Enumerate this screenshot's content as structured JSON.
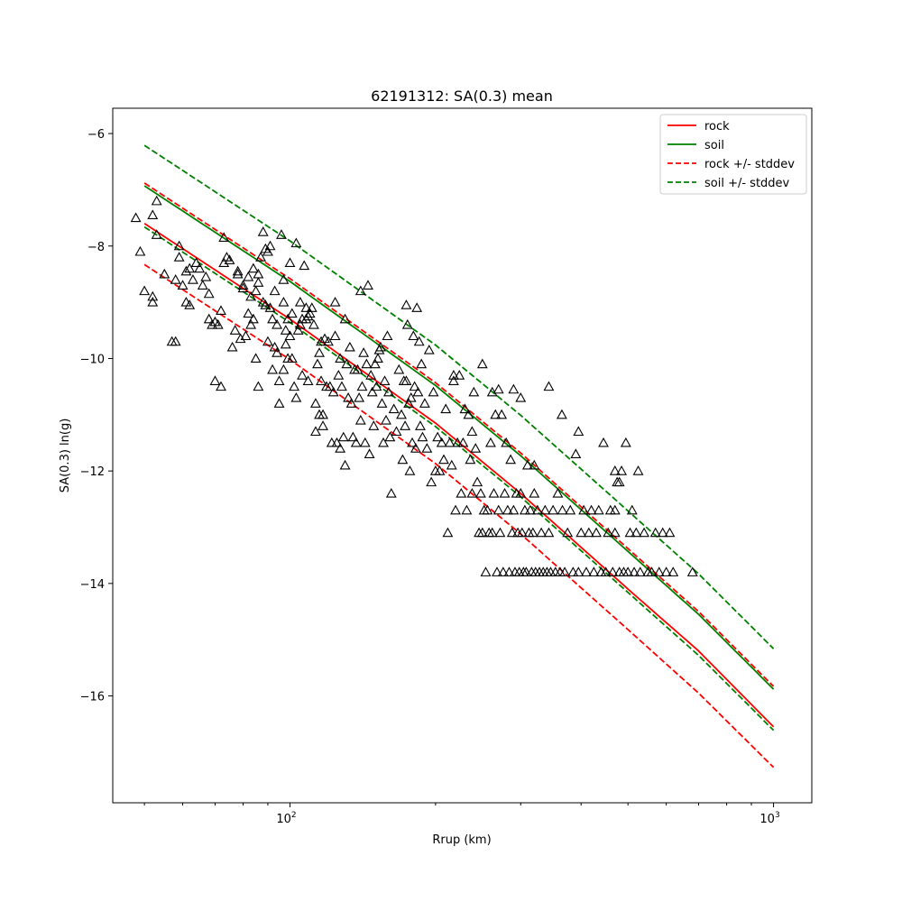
{
  "chart_data": {
    "type": "scatter",
    "title": "62191312: SA(0.3) mean",
    "xlabel": "Rrup (km)",
    "ylabel": "SA(0.3) ln(g)",
    "x_scale": "log",
    "xlim": [
      43,
      1200
    ],
    "ylim": [
      -17.9,
      -5.55
    ],
    "x_ticks": [
      {
        "value": 100,
        "base": "10",
        "exp": "2"
      },
      {
        "value": 1000,
        "base": "10",
        "exp": "3"
      }
    ],
    "y_ticks": [
      {
        "value": -6,
        "label": "−6"
      },
      {
        "value": -8,
        "label": "−8"
      },
      {
        "value": -10,
        "label": "−10"
      },
      {
        "value": -12,
        "label": "−12"
      },
      {
        "value": -14,
        "label": "−14"
      },
      {
        "value": -16,
        "label": "−16"
      }
    ],
    "legend": {
      "placement": "upper right",
      "entries": [
        {
          "label": "rock",
          "color": "#ff0000",
          "style": "solid"
        },
        {
          "label": "soil",
          "color": "#008000",
          "style": "solid"
        },
        {
          "label": "rock +/- stddev",
          "color": "#ff0000",
          "style": "dashed"
        },
        {
          "label": "soil +/- stddev",
          "color": "#008000",
          "style": "dashed"
        }
      ]
    },
    "lines": [
      {
        "name": "rock",
        "color": "#ff0000",
        "style": "solid",
        "points": [
          [
            50,
            -7.6
          ],
          [
            100,
            -9.3
          ],
          [
            200,
            -11.15
          ],
          [
            300,
            -12.4
          ],
          [
            500,
            -14.1
          ],
          [
            700,
            -15.2
          ],
          [
            1000,
            -16.55
          ]
        ]
      },
      {
        "name": "rock upper",
        "color": "#ff0000",
        "style": "dashed",
        "points": [
          [
            50,
            -6.88
          ],
          [
            100,
            -8.58
          ],
          [
            200,
            -10.43
          ],
          [
            300,
            -11.68
          ],
          [
            500,
            -13.38
          ],
          [
            700,
            -14.5
          ],
          [
            1000,
            -15.83
          ]
        ]
      },
      {
        "name": "rock lower",
        "color": "#ff0000",
        "style": "dashed",
        "points": [
          [
            50,
            -8.33
          ],
          [
            100,
            -10.02
          ],
          [
            200,
            -11.87
          ],
          [
            300,
            -13.12
          ],
          [
            500,
            -14.82
          ],
          [
            700,
            -15.95
          ],
          [
            1000,
            -17.27
          ]
        ]
      },
      {
        "name": "soil",
        "color": "#008000",
        "style": "solid",
        "points": [
          [
            50,
            -6.93
          ],
          [
            100,
            -8.63
          ],
          [
            200,
            -10.48
          ],
          [
            300,
            -11.73
          ],
          [
            500,
            -13.43
          ],
          [
            700,
            -14.55
          ],
          [
            1000,
            -15.88
          ]
        ]
      },
      {
        "name": "soil upper",
        "color": "#008000",
        "style": "dashed",
        "points": [
          [
            50,
            -6.21
          ],
          [
            100,
            -7.91
          ],
          [
            200,
            -9.76
          ],
          [
            300,
            -11.01
          ],
          [
            500,
            -12.71
          ],
          [
            700,
            -13.83
          ],
          [
            1000,
            -15.16
          ]
        ]
      },
      {
        "name": "soil lower",
        "color": "#008000",
        "style": "dashed",
        "points": [
          [
            50,
            -7.66
          ],
          [
            100,
            -9.36
          ],
          [
            200,
            -11.21
          ],
          [
            300,
            -12.46
          ],
          [
            500,
            -14.16
          ],
          [
            700,
            -15.28
          ],
          [
            1000,
            -16.61
          ]
        ]
      }
    ],
    "points": [
      [
        48,
        -7.5
      ],
      [
        49,
        -8.1
      ],
      [
        50,
        -8.8
      ],
      [
        52,
        -9.0
      ],
      [
        52,
        -8.9
      ],
      [
        53,
        -7.2
      ],
      [
        52,
        -7.45
      ],
      [
        53,
        -7.8
      ],
      [
        55,
        -8.5
      ],
      [
        57,
        -9.7
      ],
      [
        58,
        -8.6
      ],
      [
        58,
        -9.7
      ],
      [
        59,
        -8.0
      ],
      [
        59,
        -8.2
      ],
      [
        60,
        -8.7
      ],
      [
        61,
        -8.45
      ],
      [
        61,
        -9.0
      ],
      [
        62,
        -9.05
      ],
      [
        62,
        -8.4
      ],
      [
        63,
        -8.6
      ],
      [
        64,
        -8.3
      ],
      [
        65,
        -8.4
      ],
      [
        66,
        -8.7
      ],
      [
        67,
        -8.55
      ],
      [
        68,
        -9.3
      ],
      [
        68,
        -8.85
      ],
      [
        69,
        -9.4
      ],
      [
        70,
        -10.4
      ],
      [
        70,
        -9.35
      ],
      [
        71,
        -9.4
      ],
      [
        72,
        -9.15
      ],
      [
        72,
        -10.5
      ],
      [
        73,
        -7.85
      ],
      [
        73,
        -8.3
      ],
      [
        74,
        -8.2
      ],
      [
        75,
        -8.25
      ],
      [
        76,
        -9.8
      ],
      [
        77,
        -9.5
      ],
      [
        78,
        -8.5
      ],
      [
        78,
        -8.45
      ],
      [
        79,
        -9.65
      ],
      [
        80,
        -8.75
      ],
      [
        80,
        -8.7
      ],
      [
        81,
        -9.6
      ],
      [
        82,
        -8.55
      ],
      [
        82,
        -9.2
      ],
      [
        83,
        -8.9
      ],
      [
        83,
        -9.4
      ],
      [
        84,
        -9.3
      ],
      [
        84,
        -8.4
      ],
      [
        85,
        -8.8
      ],
      [
        85,
        -10.0
      ],
      [
        86,
        -8.65
      ],
      [
        86,
        -8.5
      ],
      [
        86,
        -10.5
      ],
      [
        87,
        -8.2
      ],
      [
        88,
        -9.0
      ],
      [
        88,
        -7.75
      ],
      [
        89,
        -9.05
      ],
      [
        89,
        -8.05
      ],
      [
        90,
        -9.7
      ],
      [
        90,
        -8.1
      ],
      [
        91,
        -9.1
      ],
      [
        91,
        -8.0
      ],
      [
        92,
        -9.3
      ],
      [
        92,
        -10.2
      ],
      [
        93,
        -8.8
      ],
      [
        93,
        -9.8
      ],
      [
        94,
        -9.4
      ],
      [
        94,
        -9.9
      ],
      [
        95,
        -10.8
      ],
      [
        95,
        -10.4
      ],
      [
        96,
        -7.8
      ],
      [
        97,
        -9.0
      ],
      [
        97,
        -8.6
      ],
      [
        98,
        -9.5
      ],
      [
        98,
        -9.75
      ],
      [
        99,
        -10.0
      ],
      [
        99,
        -9.3
      ],
      [
        100,
        -8.3
      ],
      [
        100,
        -9.6
      ],
      [
        101,
        -9.2
      ],
      [
        101,
        -10.0
      ],
      [
        102,
        -10.5
      ],
      [
        103,
        -7.95
      ],
      [
        103,
        -10.7
      ],
      [
        104,
        -9.5
      ],
      [
        105,
        -9.0
      ],
      [
        105,
        -9.4
      ],
      [
        106,
        -9.3
      ],
      [
        106,
        -10.3
      ],
      [
        107,
        -8.35
      ],
      [
        108,
        -9.3
      ],
      [
        109,
        -9.25
      ],
      [
        109,
        -10.4
      ],
      [
        110,
        -9.2
      ],
      [
        111,
        -9.1
      ],
      [
        112,
        -9.4
      ],
      [
        113,
        -10.8
      ],
      [
        113,
        -11.3
      ],
      [
        114,
        -10.1
      ],
      [
        115,
        -9.9
      ],
      [
        115,
        -11.0
      ],
      [
        116,
        -9.7
      ],
      [
        116,
        -10.4
      ],
      [
        117,
        -11.0
      ],
      [
        117,
        -11.2
      ],
      [
        118,
        -9.65
      ],
      [
        119,
        -10.5
      ],
      [
        120,
        -9.7
      ],
      [
        121,
        -10.5
      ],
      [
        122,
        -11.5
      ],
      [
        123,
        -10.6
      ],
      [
        124,
        -9.6
      ],
      [
        125,
        -11.5
      ],
      [
        126,
        -10.3
      ],
      [
        127,
        -10.0
      ],
      [
        127,
        -11.6
      ],
      [
        128,
        -10.5
      ],
      [
        129,
        -11.4
      ],
      [
        130,
        -9.3
      ],
      [
        130,
        -11.9
      ],
      [
        131,
        -10.1
      ],
      [
        132,
        -10.7
      ],
      [
        133,
        -9.8
      ],
      [
        134,
        -10.8
      ],
      [
        135,
        -11.4
      ],
      [
        136,
        -10.2
      ],
      [
        137,
        -11.5
      ],
      [
        138,
        -10.2
      ],
      [
        139,
        -10.7
      ],
      [
        140,
        -11.1
      ],
      [
        141,
        -10.5
      ],
      [
        142,
        -9.9
      ],
      [
        143,
        -11.5
      ],
      [
        144,
        -10.1
      ],
      [
        145,
        -8.7
      ],
      [
        146,
        -11.7
      ],
      [
        147,
        -10.3
      ],
      [
        148,
        -10.6
      ],
      [
        149,
        -11.2
      ],
      [
        150,
        -10.1
      ],
      [
        151,
        -10.5
      ],
      [
        152,
        -10.0
      ],
      [
        153,
        -9.85
      ],
      [
        154,
        -9.8
      ],
      [
        155,
        -10.8
      ],
      [
        156,
        -11.5
      ],
      [
        157,
        -10.4
      ],
      [
        158,
        -11.1
      ],
      [
        159,
        -9.6
      ],
      [
        160,
        -10.6
      ],
      [
        161,
        -11.4
      ],
      [
        162,
        -12.4
      ],
      [
        164,
        -10.9
      ],
      [
        166,
        -11.3
      ],
      [
        168,
        -10.2
      ],
      [
        170,
        -11.0
      ],
      [
        171,
        -11.8
      ],
      [
        172,
        -10.4
      ],
      [
        173,
        -11.2
      ],
      [
        174,
        -10.4
      ],
      [
        175,
        -9.4
      ],
      [
        176,
        -10.8
      ],
      [
        177,
        -12.0
      ],
      [
        178,
        -10.7
      ],
      [
        179,
        -11.5
      ],
      [
        180,
        -9.6
      ],
      [
        181,
        -10.5
      ],
      [
        182,
        -11.6
      ],
      [
        183,
        -9.1
      ],
      [
        184,
        -10.6
      ],
      [
        185,
        -9.7
      ],
      [
        186,
        -11.2
      ],
      [
        187,
        -10.1
      ],
      [
        188,
        -11.4
      ],
      [
        190,
        -10.8
      ],
      [
        192,
        -11.6
      ],
      [
        194,
        -9.85
      ],
      [
        196,
        -12.2
      ],
      [
        198,
        -10.6
      ],
      [
        200,
        -12.0
      ],
      [
        202,
        -11.4
      ],
      [
        204,
        -12.0
      ],
      [
        206,
        -11.5
      ],
      [
        208,
        -11.8
      ],
      [
        210,
        -10.9
      ],
      [
        212,
        -13.1
      ],
      [
        214,
        -11.5
      ],
      [
        216,
        -11.9
      ],
      [
        218,
        -10.4
      ],
      [
        220,
        -12.7
      ],
      [
        222,
        -11.5
      ],
      [
        224,
        -10.3
      ],
      [
        226,
        -12.4
      ],
      [
        228,
        -11.5
      ],
      [
        230,
        -10.9
      ],
      [
        232,
        -12.7
      ],
      [
        234,
        -11.0
      ],
      [
        236,
        -11.8
      ],
      [
        238,
        -12.4
      ],
      [
        240,
        -10.6
      ],
      [
        242,
        -11.6
      ],
      [
        244,
        -12.2
      ],
      [
        246,
        -13.1
      ],
      [
        248,
        -12.4
      ],
      [
        250,
        -13.1
      ],
      [
        252,
        -12.7
      ],
      [
        254,
        -13.8
      ],
      [
        256,
        -12.7
      ],
      [
        258,
        -13.1
      ],
      [
        260,
        -11.5
      ],
      [
        262,
        -13.1
      ],
      [
        264,
        -12.4
      ],
      [
        266,
        -11.0
      ],
      [
        268,
        -13.8
      ],
      [
        270,
        -12.7
      ],
      [
        272,
        -13.1
      ],
      [
        274,
        -11.0
      ],
      [
        276,
        -13.8
      ],
      [
        278,
        -12.4
      ],
      [
        280,
        -11.5
      ],
      [
        282,
        -12.7
      ],
      [
        284,
        -13.8
      ],
      [
        286,
        -11.8
      ],
      [
        288,
        -13.1
      ],
      [
        290,
        -12.7
      ],
      [
        292,
        -13.8
      ],
      [
        294,
        -12.4
      ],
      [
        296,
        -13.1
      ],
      [
        298,
        -13.8
      ],
      [
        300,
        -12.4
      ],
      [
        302,
        -13.1
      ],
      [
        304,
        -13.8
      ],
      [
        306,
        -12.7
      ],
      [
        308,
        -13.8
      ],
      [
        310,
        -11.9
      ],
      [
        312,
        -13.1
      ],
      [
        314,
        -12.7
      ],
      [
        316,
        -13.8
      ],
      [
        318,
        -13.1
      ],
      [
        320,
        -12.4
      ],
      [
        322,
        -13.8
      ],
      [
        325,
        -12.7
      ],
      [
        328,
        -13.8
      ],
      [
        331,
        -13.1
      ],
      [
        334,
        -13.8
      ],
      [
        337,
        -12.7
      ],
      [
        340,
        -13.8
      ],
      [
        343,
        -13.1
      ],
      [
        346,
        -13.8
      ],
      [
        350,
        -12.7
      ],
      [
        354,
        -13.8
      ],
      [
        358,
        -12.4
      ],
      [
        362,
        -13.8
      ],
      [
        366,
        -12.7
      ],
      [
        370,
        -13.8
      ],
      [
        375,
        -13.1
      ],
      [
        380,
        -12.7
      ],
      [
        385,
        -13.8
      ],
      [
        390,
        -11.7
      ],
      [
        395,
        -13.8
      ],
      [
        400,
        -13.1
      ],
      [
        405,
        -12.7
      ],
      [
        410,
        -13.8
      ],
      [
        415,
        -13.1
      ],
      [
        420,
        -12.7
      ],
      [
        425,
        -13.8
      ],
      [
        430,
        -13.1
      ],
      [
        435,
        -12.7
      ],
      [
        440,
        -13.8
      ],
      [
        445,
        -11.5
      ],
      [
        450,
        -13.8
      ],
      [
        455,
        -13.1
      ],
      [
        460,
        -12.7
      ],
      [
        465,
        -13.8
      ],
      [
        470,
        -13.1
      ],
      [
        475,
        -12.2
      ],
      [
        480,
        -13.8
      ],
      [
        485,
        -12.0
      ],
      [
        490,
        -13.8
      ],
      [
        495,
        -11.5
      ],
      [
        500,
        -13.8
      ],
      [
        505,
        -13.1
      ],
      [
        510,
        -12.7
      ],
      [
        515,
        -13.8
      ],
      [
        520,
        -13.1
      ],
      [
        525,
        -12.0
      ],
      [
        530,
        -13.8
      ],
      [
        540,
        -13.1
      ],
      [
        550,
        -13.8
      ],
      [
        560,
        -13.8
      ],
      [
        570,
        -13.1
      ],
      [
        580,
        -13.8
      ],
      [
        590,
        -13.1
      ],
      [
        600,
        -13.8
      ],
      [
        610,
        -13.1
      ],
      [
        620,
        -13.8
      ],
      [
        680,
        -13.8
      ],
      [
        470,
        -12.0
      ],
      [
        480,
        -12.2
      ],
      [
        470,
        -12.7
      ],
      [
        365,
        -11.0
      ],
      [
        395,
        -11.3
      ],
      [
        343,
        -10.5
      ],
      [
        300,
        -10.7
      ],
      [
        290,
        -10.55
      ],
      [
        320,
        -11.9
      ],
      [
        270,
        -10.55
      ],
      [
        250,
        -10.1
      ],
      [
        262,
        -10.6
      ],
      [
        238,
        -11.3
      ],
      [
        218,
        -10.3
      ],
      [
        174,
        -9.05
      ],
      [
        140,
        -8.8
      ],
      [
        124,
        -9.0
      ],
      [
        108,
        -9.1
      ],
      [
        97,
        -10.2
      ]
    ]
  }
}
